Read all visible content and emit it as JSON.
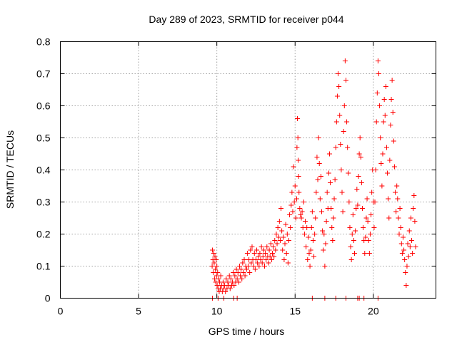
{
  "chart_data": {
    "type": "scatter",
    "title": "Day 289 of 2023, SRMTID for receiver p044",
    "xlabel": "GPS time / hours",
    "ylabel": "SRMTID / TECUs",
    "xlim": [
      0,
      24
    ],
    "ylim": [
      0,
      0.8
    ],
    "xticks": [
      0,
      5,
      10,
      15,
      20
    ],
    "yticks": [
      0,
      0.1,
      0.2,
      0.3,
      0.4,
      0.5,
      0.6,
      0.7,
      0.8
    ],
    "grid": true,
    "marker": "plus",
    "color": "#ff0000",
    "series": [
      {
        "name": "SRMTID",
        "points": [
          [
            9.7,
            0.1
          ],
          [
            9.72,
            0.15
          ],
          [
            9.75,
            0.12
          ],
          [
            9.78,
            0.08
          ],
          [
            9.8,
            0.14
          ],
          [
            9.83,
            0.11
          ],
          [
            9.85,
            0.06
          ],
          [
            9.88,
            0.13
          ],
          [
            9.9,
            0.09
          ],
          [
            9.93,
            0.05
          ],
          [
            9.96,
            0.12
          ],
          [
            9.98,
            0.07
          ],
          [
            10.0,
            0.1
          ],
          [
            10.02,
            0.04
          ],
          [
            10.05,
            0.08
          ],
          [
            10.08,
            0.03
          ],
          [
            10.12,
            0.06
          ],
          [
            10.15,
            0.02
          ],
          [
            10.18,
            0.05
          ],
          [
            10.22,
            0.03
          ],
          [
            10.25,
            0.07
          ],
          [
            10.3,
            0.04
          ],
          [
            10.35,
            0.02
          ],
          [
            10.4,
            0.05
          ],
          [
            10.45,
            0.03
          ],
          [
            10.5,
            0.04
          ],
          [
            10.55,
            0.02
          ],
          [
            10.6,
            0.06
          ],
          [
            10.65,
            0.03
          ],
          [
            10.7,
            0.05
          ],
          [
            10.75,
            0.04
          ],
          [
            10.8,
            0.07
          ],
          [
            10.85,
            0.03
          ],
          [
            10.9,
            0.06
          ],
          [
            10.95,
            0.04
          ],
          [
            11.0,
            0.05
          ],
          [
            11.05,
            0.08
          ],
          [
            11.1,
            0.04
          ],
          [
            11.15,
            0.07
          ],
          [
            11.2,
            0.05
          ],
          [
            11.25,
            0.09
          ],
          [
            11.3,
            0.06
          ],
          [
            11.35,
            0.08
          ],
          [
            11.4,
            0.05
          ],
          [
            11.45,
            0.1
          ],
          [
            11.5,
            0.07
          ],
          [
            11.55,
            0.09
          ],
          [
            11.6,
            0.06
          ],
          [
            11.65,
            0.11
          ],
          [
            11.7,
            0.08
          ],
          [
            11.75,
            0.12
          ],
          [
            11.8,
            0.07
          ],
          [
            11.85,
            0.1
          ],
          [
            11.9,
            0.09
          ],
          [
            11.95,
            0.14
          ],
          [
            12.0,
            0.1
          ],
          [
            12.05,
            0.12
          ],
          [
            12.1,
            0.08
          ],
          [
            12.15,
            0.15
          ],
          [
            12.2,
            0.11
          ],
          [
            12.25,
            0.16
          ],
          [
            12.3,
            0.12
          ],
          [
            12.35,
            0.1
          ],
          [
            12.4,
            0.14
          ],
          [
            12.45,
            0.09
          ],
          [
            12.5,
            0.12
          ],
          [
            12.55,
            0.15
          ],
          [
            12.6,
            0.11
          ],
          [
            12.65,
            0.13
          ],
          [
            12.7,
            0.1
          ],
          [
            12.75,
            0.14
          ],
          [
            12.8,
            0.12
          ],
          [
            12.85,
            0.16
          ],
          [
            12.9,
            0.11
          ],
          [
            12.95,
            0.13
          ],
          [
            13.0,
            0.15
          ],
          [
            13.05,
            0.1
          ],
          [
            13.1,
            0.14
          ],
          [
            13.15,
            0.12
          ],
          [
            13.2,
            0.16
          ],
          [
            13.25,
            0.13
          ],
          [
            13.3,
            0.11
          ],
          [
            13.35,
            0.15
          ],
          [
            13.4,
            0.13
          ],
          [
            13.45,
            0.17
          ],
          [
            13.5,
            0.12
          ],
          [
            13.55,
            0.14
          ],
          [
            13.6,
            0.16
          ],
          [
            13.65,
            0.13
          ],
          [
            13.7,
            0.18
          ],
          [
            13.75,
            0.15
          ],
          [
            13.8,
            0.2
          ],
          [
            13.85,
            0.17
          ],
          [
            13.9,
            0.22
          ],
          [
            13.95,
            0.19
          ],
          [
            14.0,
            0.24
          ],
          [
            14.05,
            0.18
          ],
          [
            14.1,
            0.28
          ],
          [
            14.15,
            0.21
          ],
          [
            14.2,
            0.15
          ],
          [
            14.25,
            0.19
          ],
          [
            14.3,
            0.12
          ],
          [
            14.35,
            0.17
          ],
          [
            14.4,
            0.23
          ],
          [
            14.45,
            0.14
          ],
          [
            14.5,
            0.2
          ],
          [
            14.55,
            0.11
          ],
          [
            14.6,
            0.18
          ],
          [
            14.65,
            0.26
          ],
          [
            14.7,
            0.22
          ],
          [
            14.75,
            0.29
          ],
          [
            14.8,
            0.33
          ],
          [
            14.85,
            0.27
          ],
          [
            14.9,
            0.41
          ],
          [
            14.95,
            0.3
          ],
          [
            15.0,
            0.35
          ],
          [
            15.05,
            0.25
          ],
          [
            15.1,
            0.31
          ],
          [
            15.12,
            0.47
          ],
          [
            15.15,
            0.56
          ],
          [
            15.18,
            0.5
          ],
          [
            15.2,
            0.43
          ],
          [
            15.22,
            0.38
          ],
          [
            15.25,
            0.33
          ],
          [
            15.3,
            0.28
          ],
          [
            15.35,
            0.26
          ],
          [
            15.4,
            0.25
          ],
          [
            15.45,
            0.27
          ],
          [
            15.5,
            0.22
          ],
          [
            15.55,
            0.3
          ],
          [
            15.6,
            0.2
          ],
          [
            15.65,
            0.24
          ],
          [
            15.7,
            0.16
          ],
          [
            15.75,
            0.22
          ],
          [
            15.8,
            0.12
          ],
          [
            15.85,
            0.19
          ],
          [
            15.9,
            0.14
          ],
          [
            15.95,
            0.1
          ],
          [
            16.0,
            0.15
          ],
          [
            16.05,
            0.22
          ],
          [
            16.1,
            0.27
          ],
          [
            16.15,
            0.18
          ],
          [
            16.2,
            0.13
          ],
          [
            16.25,
            0.2
          ],
          [
            16.3,
            0.25
          ],
          [
            16.35,
            0.33
          ],
          [
            16.4,
            0.44
          ],
          [
            16.45,
            0.37
          ],
          [
            16.5,
            0.5
          ],
          [
            16.55,
            0.42
          ],
          [
            16.6,
            0.31
          ],
          [
            16.65,
            0.38
          ],
          [
            16.7,
            0.27
          ],
          [
            16.75,
            0.21
          ],
          [
            16.8,
            0.15
          ],
          [
            16.85,
            0.2
          ],
          [
            16.9,
            0.1
          ],
          [
            16.95,
            0.17
          ],
          [
            17.0,
            0.24
          ],
          [
            17.05,
            0.33
          ],
          [
            17.1,
            0.28
          ],
          [
            17.15,
            0.39
          ],
          [
            17.2,
            0.45
          ],
          [
            17.25,
            0.36
          ],
          [
            17.3,
            0.28
          ],
          [
            17.35,
            0.22
          ],
          [
            17.4,
            0.18
          ],
          [
            17.45,
            0.25
          ],
          [
            17.5,
            0.31
          ],
          [
            17.55,
            0.37
          ],
          [
            17.6,
            0.47
          ],
          [
            17.65,
            0.55
          ],
          [
            17.7,
            0.63
          ],
          [
            17.75,
            0.7
          ],
          [
            17.8,
            0.66
          ],
          [
            17.85,
            0.57
          ],
          [
            17.9,
            0.48
          ],
          [
            17.95,
            0.4
          ],
          [
            18.0,
            0.33
          ],
          [
            18.05,
            0.27
          ],
          [
            18.1,
            0.52
          ],
          [
            18.15,
            0.6
          ],
          [
            18.2,
            0.74
          ],
          [
            18.25,
            0.68
          ],
          [
            18.3,
            0.55
          ],
          [
            18.35,
            0.47
          ],
          [
            18.4,
            0.39
          ],
          [
            18.45,
            0.3
          ],
          [
            18.5,
            0.22
          ],
          [
            18.55,
            0.16
          ],
          [
            18.6,
            0.12
          ],
          [
            18.65,
            0.2
          ],
          [
            18.7,
            0.26
          ],
          [
            18.75,
            0.18
          ],
          [
            18.8,
            0.14
          ],
          [
            18.85,
            0.21
          ],
          [
            18.9,
            0.28
          ],
          [
            18.95,
            0.34
          ],
          [
            19.0,
            0.29
          ],
          [
            19.05,
            0.38
          ],
          [
            19.1,
            0.45
          ],
          [
            19.15,
            0.5
          ],
          [
            19.2,
            0.44
          ],
          [
            19.25,
            0.36
          ],
          [
            19.3,
            0.28
          ],
          [
            19.35,
            0.22
          ],
          [
            19.4,
            0.18
          ],
          [
            19.45,
            0.14
          ],
          [
            19.5,
            0.19
          ],
          [
            19.55,
            0.25
          ],
          [
            19.6,
            0.31
          ],
          [
            19.65,
            0.24
          ],
          [
            19.7,
            0.18
          ],
          [
            19.75,
            0.14
          ],
          [
            19.8,
            0.2
          ],
          [
            19.85,
            0.26
          ],
          [
            19.9,
            0.33
          ],
          [
            19.95,
            0.4
          ],
          [
            20.0,
            0.3
          ],
          [
            20.05,
            0.22
          ],
          [
            20.1,
            0.3
          ],
          [
            20.15,
            0.4
          ],
          [
            20.2,
            0.55
          ],
          [
            20.25,
            0.64
          ],
          [
            20.3,
            0.74
          ],
          [
            20.35,
            0.7
          ],
          [
            20.4,
            0.6
          ],
          [
            20.45,
            0.5
          ],
          [
            20.5,
            0.42
          ],
          [
            20.55,
            0.35
          ],
          [
            20.6,
            0.45
          ],
          [
            20.65,
            0.55
          ],
          [
            20.7,
            0.62
          ],
          [
            20.75,
            0.57
          ],
          [
            20.8,
            0.66
          ],
          [
            20.85,
            0.47
          ],
          [
            20.9,
            0.39
          ],
          [
            20.95,
            0.31
          ],
          [
            21.0,
            0.25
          ],
          [
            21.05,
            0.43
          ],
          [
            21.1,
            0.54
          ],
          [
            21.15,
            0.62
          ],
          [
            21.2,
            0.68
          ],
          [
            21.25,
            0.58
          ],
          [
            21.3,
            0.49
          ],
          [
            21.35,
            0.41
          ],
          [
            21.4,
            0.33
          ],
          [
            21.45,
            0.27
          ],
          [
            21.5,
            0.35
          ],
          [
            21.55,
            0.31
          ],
          [
            21.6,
            0.25
          ],
          [
            21.65,
            0.2
          ],
          [
            21.7,
            0.28
          ],
          [
            21.75,
            0.22
          ],
          [
            21.8,
            0.17
          ],
          [
            21.85,
            0.14
          ],
          [
            21.9,
            0.19
          ],
          [
            21.95,
            0.15
          ],
          [
            22.0,
            0.12
          ],
          [
            22.05,
            0.08
          ],
          [
            22.1,
            0.04
          ],
          [
            22.15,
            0.1
          ],
          [
            22.2,
            0.17
          ],
          [
            22.25,
            0.13
          ],
          [
            22.3,
            0.21
          ],
          [
            22.35,
            0.16
          ],
          [
            22.4,
            0.25
          ],
          [
            22.45,
            0.18
          ],
          [
            22.5,
            0.14
          ],
          [
            22.55,
            0.28
          ],
          [
            22.6,
            0.32
          ],
          [
            22.65,
            0.24
          ],
          [
            22.7,
            0.16
          ],
          [
            9.72,
            0.0
          ],
          [
            10.08,
            0.0
          ],
          [
            10.45,
            0.0
          ],
          [
            11.08,
            0.0
          ],
          [
            11.3,
            0.0
          ],
          [
            16.1,
            0.0
          ],
          [
            16.9,
            0.0
          ],
          [
            17.6,
            0.0
          ],
          [
            18.25,
            0.0
          ],
          [
            19.0,
            0.0
          ],
          [
            19.1,
            0.0
          ],
          [
            19.4,
            0.0
          ],
          [
            20.3,
            0.0
          ]
        ]
      }
    ]
  }
}
